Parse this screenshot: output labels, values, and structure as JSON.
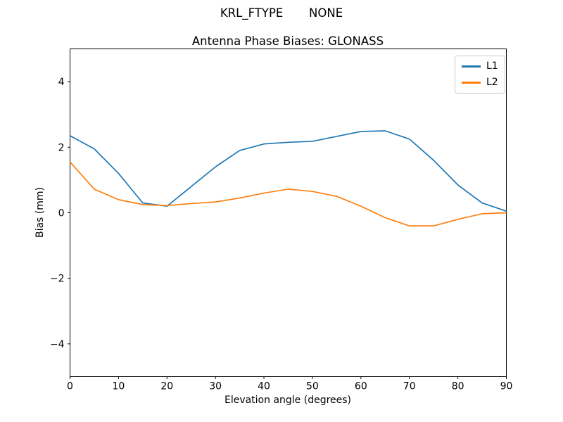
{
  "figure": {
    "suptitle": "KRL_FTYPE       NONE"
  },
  "chart_data": {
    "type": "line",
    "title": "Antenna Phase Biases: GLONASS",
    "xlabel": "Elevation angle (degrees)",
    "ylabel": "Bias (mm)",
    "xlim": [
      0,
      90
    ],
    "ylim": [
      -5,
      5
    ],
    "xticks": [
      0,
      10,
      20,
      30,
      40,
      50,
      60,
      70,
      80,
      90
    ],
    "yticks": [
      -4,
      -2,
      0,
      2,
      4
    ],
    "grid": false,
    "legend_position": "upper right",
    "x": [
      0,
      5,
      10,
      15,
      20,
      25,
      30,
      35,
      40,
      45,
      50,
      55,
      60,
      65,
      70,
      75,
      80,
      85,
      90
    ],
    "series": [
      {
        "name": "L1",
        "color": "#1f77b4",
        "values": [
          2.35,
          1.95,
          1.2,
          0.3,
          0.2,
          0.8,
          1.4,
          1.9,
          2.1,
          2.15,
          2.18,
          2.33,
          2.48,
          2.5,
          2.25,
          1.6,
          0.85,
          0.3,
          0.05
        ]
      },
      {
        "name": "L2",
        "color": "#ff7f0e",
        "values": [
          1.55,
          0.72,
          0.4,
          0.25,
          0.22,
          0.28,
          0.33,
          0.45,
          0.6,
          0.72,
          0.65,
          0.5,
          0.2,
          -0.15,
          -0.4,
          -0.4,
          -0.2,
          -0.03,
          0.0
        ]
      }
    ]
  }
}
